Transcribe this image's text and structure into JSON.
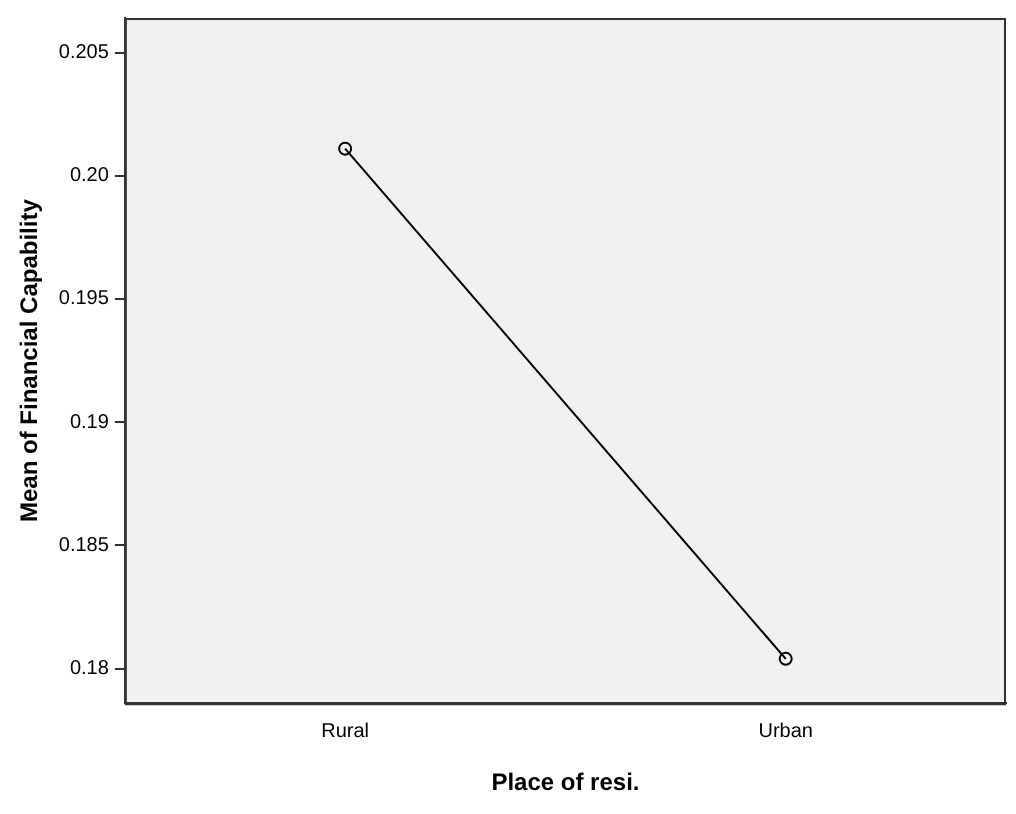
{
  "chart_data": {
    "type": "line",
    "xlabel": "Place of resi.",
    "ylabel": "Mean of Financial Capability",
    "categories": [
      "Rural",
      "Urban"
    ],
    "series": [
      {
        "color": "#000000",
        "values": [
          0.2011,
          0.1804
        ]
      }
    ],
    "ylim": [
      0.1786,
      0.2064
    ],
    "yticks": [
      {
        "value": 0.18,
        "label": "0.18"
      },
      0.185,
      {
        "value": 0.19,
        "label": "0.19"
      },
      0.195,
      {
        "value": 0.2,
        "label": "0.20"
      },
      0.205
    ],
    "marker": "circle",
    "line_style": "solid",
    "grid": false,
    "legend": false
  }
}
